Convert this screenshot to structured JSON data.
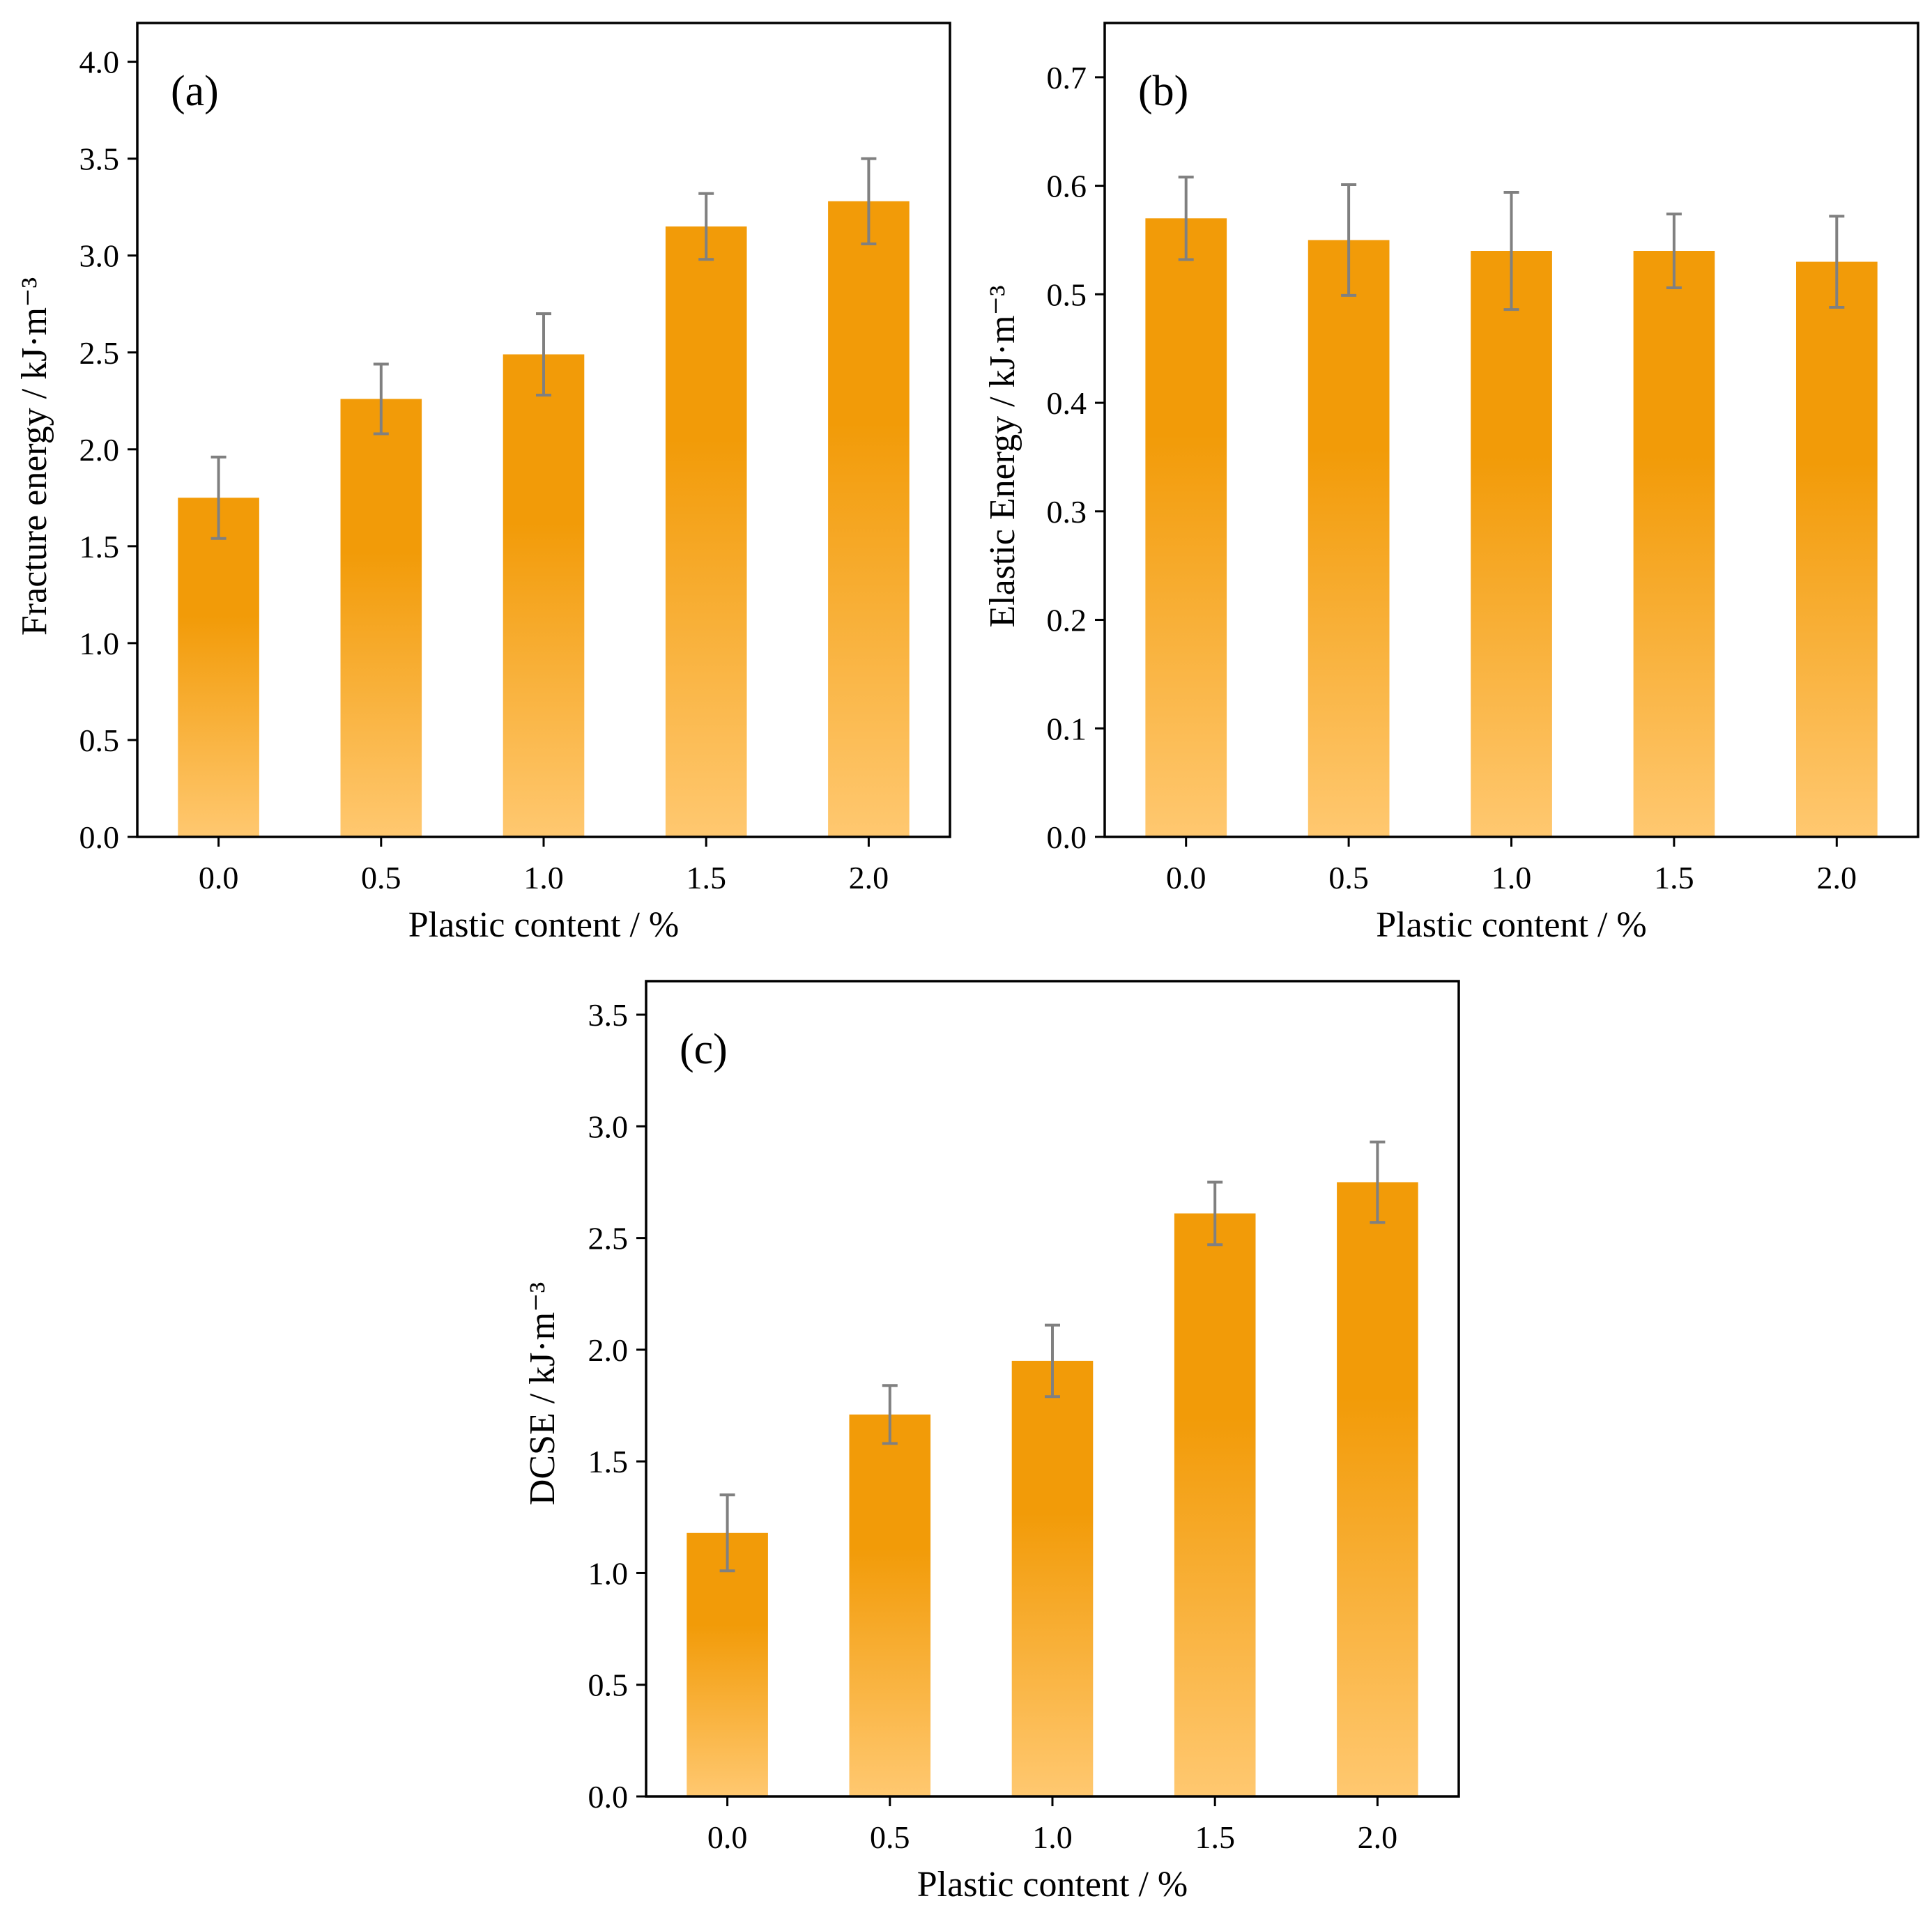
{
  "chart_data": [
    {
      "type": "bar",
      "panel_label": "(a)",
      "categories": [
        "0.0",
        "0.5",
        "1.0",
        "1.5",
        "2.0"
      ],
      "values": [
        1.75,
        2.26,
        2.49,
        3.15,
        3.28
      ],
      "errors": [
        0.21,
        0.18,
        0.21,
        0.17,
        0.22
      ],
      "xlabel": "Plastic content / %",
      "ylabel": "Fracture energy / kJ·m⁻³",
      "ylim": [
        0,
        4.2
      ],
      "yticks": [
        "0.0",
        "0.5",
        "1.0",
        "1.5",
        "2.0",
        "2.5",
        "3.0",
        "3.5",
        "4.0"
      ],
      "grid": false,
      "colors": {
        "bar_top": "#F29B08",
        "bar_bottom": "#FFC870",
        "error": "#808080",
        "frame": "#000000"
      }
    },
    {
      "type": "bar",
      "panel_label": "(b)",
      "categories": [
        "0.0",
        "0.5",
        "1.0",
        "1.5",
        "2.0"
      ],
      "values": [
        0.57,
        0.55,
        0.54,
        0.54,
        0.53
      ],
      "errors": [
        0.038,
        0.051,
        0.054,
        0.034,
        0.042
      ],
      "xlabel": "Plastic content / %",
      "ylabel": "Elastic Energy / kJ·m⁻³",
      "ylim": [
        0,
        0.75
      ],
      "yticks": [
        "0.0",
        "0.1",
        "0.2",
        "0.3",
        "0.4",
        "0.5",
        "0.6",
        "0.7"
      ],
      "grid": false,
      "colors": {
        "bar_top": "#F29B08",
        "bar_bottom": "#FFC870",
        "error": "#808080",
        "frame": "#000000"
      }
    },
    {
      "type": "bar",
      "panel_label": "(c)",
      "categories": [
        "0.0",
        "0.5",
        "1.0",
        "1.5",
        "2.0"
      ],
      "values": [
        1.18,
        1.71,
        1.95,
        2.61,
        2.75
      ],
      "errors": [
        0.17,
        0.13,
        0.16,
        0.14,
        0.18
      ],
      "xlabel": "Plastic content / %",
      "ylabel": "DCSE / kJ·m⁻³",
      "ylim": [
        0,
        3.65
      ],
      "yticks": [
        "0.0",
        "0.5",
        "1.0",
        "1.5",
        "2.0",
        "2.5",
        "3.0",
        "3.5"
      ],
      "grid": false,
      "colors": {
        "bar_top": "#F29B08",
        "bar_bottom": "#FFC870",
        "error": "#808080",
        "frame": "#000000"
      }
    }
  ]
}
